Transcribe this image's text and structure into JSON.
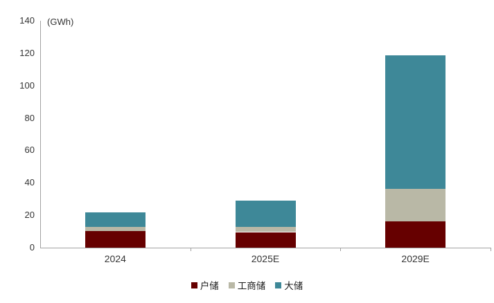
{
  "chart_data": {
    "type": "bar",
    "stacked": true,
    "unit_label": "(GWh)",
    "categories": [
      "2024",
      "2025E",
      "2029E"
    ],
    "series": [
      {
        "name": "户储",
        "color": "#660000",
        "values": [
          10.3,
          9.6,
          16.1
        ]
      },
      {
        "name": "工商储",
        "color": "#b9b8a6",
        "values": [
          2.4,
          3.3,
          20.1
        ]
      },
      {
        "name": "大储",
        "color": "#3e8898",
        "values": [
          9.1,
          16.3,
          82.3
        ]
      }
    ],
    "totals": [
      21.8,
      29.2,
      118.5
    ],
    "ylim": [
      0,
      140
    ],
    "yticks": [
      0,
      20,
      40,
      60,
      80,
      100,
      120,
      140
    ],
    "grid": false,
    "legend_position": "bottom",
    "axis_color": "#a0a0a0",
    "text_color": "#333333",
    "background_color": "#ffffff"
  }
}
